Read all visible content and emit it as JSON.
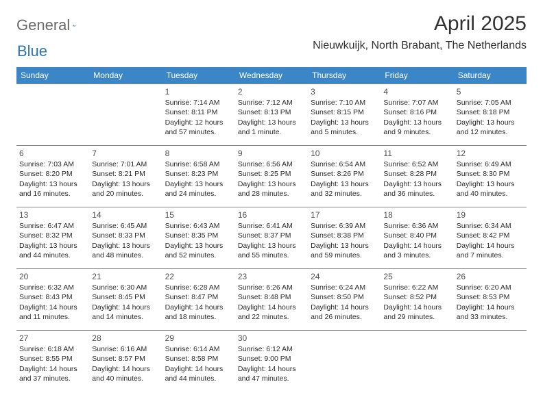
{
  "brand": {
    "name_a": "General",
    "name_b": "Blue"
  },
  "title": {
    "month_year": "April 2025",
    "location": "Nieuwkuijk, North Brabant, The Netherlands"
  },
  "columns": [
    "Sunday",
    "Monday",
    "Tuesday",
    "Wednesday",
    "Thursday",
    "Friday",
    "Saturday"
  ],
  "colors": {
    "header_bg": "#3b86c6",
    "header_fg": "#ffffff",
    "border": "#858585",
    "text": "#2a2a2a",
    "logo_gray": "#6a6a6a",
    "logo_blue": "#2f73b5"
  },
  "weeks": [
    [
      null,
      null,
      {
        "n": "1",
        "sr": "Sunrise: 7:14 AM",
        "ss": "Sunset: 8:11 PM",
        "dl1": "Daylight: 12 hours",
        "dl2": "and 57 minutes."
      },
      {
        "n": "2",
        "sr": "Sunrise: 7:12 AM",
        "ss": "Sunset: 8:13 PM",
        "dl1": "Daylight: 13 hours",
        "dl2": "and 1 minute."
      },
      {
        "n": "3",
        "sr": "Sunrise: 7:10 AM",
        "ss": "Sunset: 8:15 PM",
        "dl1": "Daylight: 13 hours",
        "dl2": "and 5 minutes."
      },
      {
        "n": "4",
        "sr": "Sunrise: 7:07 AM",
        "ss": "Sunset: 8:16 PM",
        "dl1": "Daylight: 13 hours",
        "dl2": "and 9 minutes."
      },
      {
        "n": "5",
        "sr": "Sunrise: 7:05 AM",
        "ss": "Sunset: 8:18 PM",
        "dl1": "Daylight: 13 hours",
        "dl2": "and 12 minutes."
      }
    ],
    [
      {
        "n": "6",
        "sr": "Sunrise: 7:03 AM",
        "ss": "Sunset: 8:20 PM",
        "dl1": "Daylight: 13 hours",
        "dl2": "and 16 minutes."
      },
      {
        "n": "7",
        "sr": "Sunrise: 7:01 AM",
        "ss": "Sunset: 8:21 PM",
        "dl1": "Daylight: 13 hours",
        "dl2": "and 20 minutes."
      },
      {
        "n": "8",
        "sr": "Sunrise: 6:58 AM",
        "ss": "Sunset: 8:23 PM",
        "dl1": "Daylight: 13 hours",
        "dl2": "and 24 minutes."
      },
      {
        "n": "9",
        "sr": "Sunrise: 6:56 AM",
        "ss": "Sunset: 8:25 PM",
        "dl1": "Daylight: 13 hours",
        "dl2": "and 28 minutes."
      },
      {
        "n": "10",
        "sr": "Sunrise: 6:54 AM",
        "ss": "Sunset: 8:26 PM",
        "dl1": "Daylight: 13 hours",
        "dl2": "and 32 minutes."
      },
      {
        "n": "11",
        "sr": "Sunrise: 6:52 AM",
        "ss": "Sunset: 8:28 PM",
        "dl1": "Daylight: 13 hours",
        "dl2": "and 36 minutes."
      },
      {
        "n": "12",
        "sr": "Sunrise: 6:49 AM",
        "ss": "Sunset: 8:30 PM",
        "dl1": "Daylight: 13 hours",
        "dl2": "and 40 minutes."
      }
    ],
    [
      {
        "n": "13",
        "sr": "Sunrise: 6:47 AM",
        "ss": "Sunset: 8:32 PM",
        "dl1": "Daylight: 13 hours",
        "dl2": "and 44 minutes."
      },
      {
        "n": "14",
        "sr": "Sunrise: 6:45 AM",
        "ss": "Sunset: 8:33 PM",
        "dl1": "Daylight: 13 hours",
        "dl2": "and 48 minutes."
      },
      {
        "n": "15",
        "sr": "Sunrise: 6:43 AM",
        "ss": "Sunset: 8:35 PM",
        "dl1": "Daylight: 13 hours",
        "dl2": "and 52 minutes."
      },
      {
        "n": "16",
        "sr": "Sunrise: 6:41 AM",
        "ss": "Sunset: 8:37 PM",
        "dl1": "Daylight: 13 hours",
        "dl2": "and 55 minutes."
      },
      {
        "n": "17",
        "sr": "Sunrise: 6:39 AM",
        "ss": "Sunset: 8:38 PM",
        "dl1": "Daylight: 13 hours",
        "dl2": "and 59 minutes."
      },
      {
        "n": "18",
        "sr": "Sunrise: 6:36 AM",
        "ss": "Sunset: 8:40 PM",
        "dl1": "Daylight: 14 hours",
        "dl2": "and 3 minutes."
      },
      {
        "n": "19",
        "sr": "Sunrise: 6:34 AM",
        "ss": "Sunset: 8:42 PM",
        "dl1": "Daylight: 14 hours",
        "dl2": "and 7 minutes."
      }
    ],
    [
      {
        "n": "20",
        "sr": "Sunrise: 6:32 AM",
        "ss": "Sunset: 8:43 PM",
        "dl1": "Daylight: 14 hours",
        "dl2": "and 11 minutes."
      },
      {
        "n": "21",
        "sr": "Sunrise: 6:30 AM",
        "ss": "Sunset: 8:45 PM",
        "dl1": "Daylight: 14 hours",
        "dl2": "and 14 minutes."
      },
      {
        "n": "22",
        "sr": "Sunrise: 6:28 AM",
        "ss": "Sunset: 8:47 PM",
        "dl1": "Daylight: 14 hours",
        "dl2": "and 18 minutes."
      },
      {
        "n": "23",
        "sr": "Sunrise: 6:26 AM",
        "ss": "Sunset: 8:48 PM",
        "dl1": "Daylight: 14 hours",
        "dl2": "and 22 minutes."
      },
      {
        "n": "24",
        "sr": "Sunrise: 6:24 AM",
        "ss": "Sunset: 8:50 PM",
        "dl1": "Daylight: 14 hours",
        "dl2": "and 26 minutes."
      },
      {
        "n": "25",
        "sr": "Sunrise: 6:22 AM",
        "ss": "Sunset: 8:52 PM",
        "dl1": "Daylight: 14 hours",
        "dl2": "and 29 minutes."
      },
      {
        "n": "26",
        "sr": "Sunrise: 6:20 AM",
        "ss": "Sunset: 8:53 PM",
        "dl1": "Daylight: 14 hours",
        "dl2": "and 33 minutes."
      }
    ],
    [
      {
        "n": "27",
        "sr": "Sunrise: 6:18 AM",
        "ss": "Sunset: 8:55 PM",
        "dl1": "Daylight: 14 hours",
        "dl2": "and 37 minutes."
      },
      {
        "n": "28",
        "sr": "Sunrise: 6:16 AM",
        "ss": "Sunset: 8:57 PM",
        "dl1": "Daylight: 14 hours",
        "dl2": "and 40 minutes."
      },
      {
        "n": "29",
        "sr": "Sunrise: 6:14 AM",
        "ss": "Sunset: 8:58 PM",
        "dl1": "Daylight: 14 hours",
        "dl2": "and 44 minutes."
      },
      {
        "n": "30",
        "sr": "Sunrise: 6:12 AM",
        "ss": "Sunset: 9:00 PM",
        "dl1": "Daylight: 14 hours",
        "dl2": "and 47 minutes."
      },
      null,
      null,
      null
    ]
  ]
}
